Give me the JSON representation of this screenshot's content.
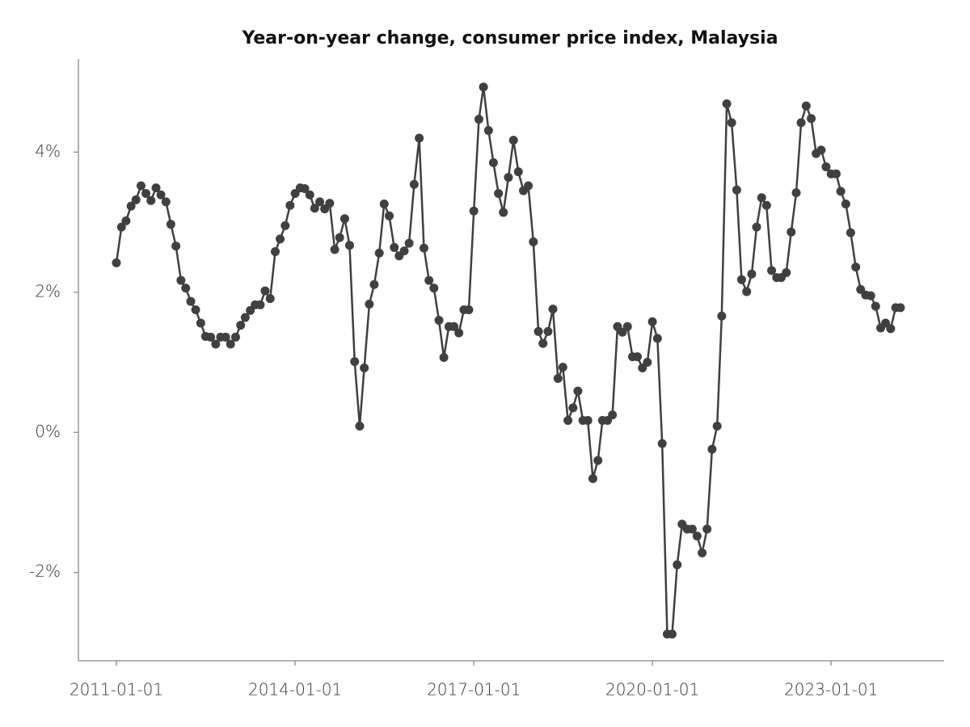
{
  "chart_data": {
    "type": "line",
    "title": "Year-on-year change, consumer price index, Malaysia",
    "x": [
      "2011-01-01",
      "2011-02-01",
      "2011-03-01",
      "2011-04-01",
      "2011-05-01",
      "2011-06-01",
      "2011-07-01",
      "2011-08-01",
      "2011-09-01",
      "2011-10-01",
      "2011-11-01",
      "2011-12-01",
      "2012-01-01",
      "2012-02-01",
      "2012-03-01",
      "2012-04-01",
      "2012-05-01",
      "2012-06-01",
      "2012-07-01",
      "2012-08-01",
      "2012-09-01",
      "2012-10-01",
      "2012-11-01",
      "2012-12-01",
      "2013-01-01",
      "2013-02-01",
      "2013-03-01",
      "2013-04-01",
      "2013-05-01",
      "2013-06-01",
      "2013-07-01",
      "2013-08-01",
      "2013-09-01",
      "2013-10-01",
      "2013-11-01",
      "2013-12-01",
      "2014-01-01",
      "2014-02-01",
      "2014-03-01",
      "2014-04-01",
      "2014-05-01",
      "2014-06-01",
      "2014-07-01",
      "2014-08-01",
      "2014-09-01",
      "2014-10-01",
      "2014-11-01",
      "2014-12-01",
      "2015-01-01",
      "2015-02-01",
      "2015-03-01",
      "2015-04-01",
      "2015-05-01",
      "2015-06-01",
      "2015-07-01",
      "2015-08-01",
      "2015-09-01",
      "2015-10-01",
      "2015-11-01",
      "2015-12-01",
      "2016-01-01",
      "2016-02-01",
      "2016-03-01",
      "2016-04-01",
      "2016-05-01",
      "2016-06-01",
      "2016-07-01",
      "2016-08-01",
      "2016-09-01",
      "2016-10-01",
      "2016-11-01",
      "2016-12-01",
      "2017-01-01",
      "2017-02-01",
      "2017-03-01",
      "2017-04-01",
      "2017-05-01",
      "2017-06-01",
      "2017-07-01",
      "2017-08-01",
      "2017-09-01",
      "2017-10-01",
      "2017-11-01",
      "2017-12-01",
      "2018-01-01",
      "2018-02-01",
      "2018-03-01",
      "2018-04-01",
      "2018-05-01",
      "2018-06-01",
      "2018-07-01",
      "2018-08-01",
      "2018-09-01",
      "2018-10-01",
      "2018-11-01",
      "2018-12-01",
      "2019-01-01",
      "2019-02-01",
      "2019-03-01",
      "2019-04-01",
      "2019-05-01",
      "2019-06-01",
      "2019-07-01",
      "2019-08-01",
      "2019-09-01",
      "2019-10-01",
      "2019-11-01",
      "2019-12-01",
      "2020-01-01",
      "2020-02-01",
      "2020-03-01",
      "2020-04-01",
      "2020-05-01",
      "2020-06-01",
      "2020-07-01",
      "2020-08-01",
      "2020-09-01",
      "2020-10-01",
      "2020-11-01",
      "2020-12-01",
      "2021-01-01",
      "2021-02-01",
      "2021-03-01",
      "2021-04-01",
      "2021-05-01",
      "2021-06-01",
      "2021-07-01",
      "2021-08-01",
      "2021-09-01",
      "2021-10-01",
      "2021-11-01",
      "2021-12-01",
      "2022-01-01",
      "2022-02-01",
      "2022-03-01",
      "2022-04-01",
      "2022-05-01",
      "2022-06-01",
      "2022-07-01",
      "2022-08-01",
      "2022-09-01",
      "2022-10-01",
      "2022-11-01",
      "2022-12-01",
      "2023-01-01",
      "2023-02-01",
      "2023-03-01",
      "2023-04-01",
      "2023-05-01",
      "2023-06-01",
      "2023-07-01",
      "2023-08-01",
      "2023-09-01",
      "2023-10-01",
      "2023-11-01",
      "2023-12-01",
      "2024-01-01",
      "2024-02-01",
      "2024-03-01"
    ],
    "values": [
      2.42,
      2.93,
      3.02,
      3.23,
      3.32,
      3.52,
      3.41,
      3.31,
      3.49,
      3.39,
      3.29,
      2.97,
      2.66,
      2.17,
      2.06,
      1.87,
      1.75,
      1.56,
      1.37,
      1.36,
      1.26,
      1.36,
      1.36,
      1.26,
      1.36,
      1.53,
      1.64,
      1.74,
      1.82,
      1.82,
      2.02,
      1.91,
      2.58,
      2.76,
      2.95,
      3.24,
      3.41,
      3.49,
      3.48,
      3.39,
      3.2,
      3.29,
      3.19,
      3.27,
      2.61,
      2.78,
      3.05,
      2.67,
      1.01,
      0.09,
      0.92,
      1.83,
      2.11,
      2.56,
      3.26,
      3.09,
      2.64,
      2.52,
      2.59,
      2.7,
      3.54,
      4.2,
      2.63,
      2.17,
      2.06,
      1.6,
      1.07,
      1.51,
      1.51,
      1.42,
      1.75,
      1.75,
      3.16,
      4.47,
      4.93,
      4.31,
      3.85,
      3.41,
      3.14,
      3.64,
      4.17,
      3.72,
      3.45,
      3.52,
      2.72,
      1.44,
      1.27,
      1.44,
      1.76,
      0.77,
      0.93,
      0.17,
      0.35,
      0.59,
      0.17,
      0.17,
      -0.66,
      -0.4,
      0.17,
      0.17,
      0.25,
      1.51,
      1.43,
      1.51,
      1.08,
      1.08,
      0.92,
      1.0,
      1.58,
      1.34,
      -0.16,
      -2.88,
      -2.88,
      -1.89,
      -1.31,
      -1.38,
      -1.38,
      -1.48,
      -1.72,
      -1.38,
      -0.24,
      0.09,
      1.66,
      4.69,
      4.42,
      3.46,
      2.18,
      2.01,
      2.26,
      2.93,
      3.35,
      3.24,
      2.31,
      2.21,
      2.21,
      2.28,
      2.86,
      3.42,
      4.42,
      4.66,
      4.48,
      3.98,
      4.03,
      3.79,
      3.69,
      3.69,
      3.44,
      3.26,
      2.85,
      2.36,
      2.04,
      1.96,
      1.95,
      1.8,
      1.49,
      1.56,
      1.48,
      1.78,
      1.78
    ],
    "color": "#404040",
    "xlim": [
      "2010-05-13",
      "2024-11-24"
    ],
    "xticks": [
      "2011-01-01",
      "2014-01-01",
      "2017-01-01",
      "2020-01-01",
      "2023-01-01"
    ],
    "ylim": [
      -3.26,
      5.33
    ],
    "yticks": [
      {
        "value": -2,
        "label": "-2%"
      },
      {
        "value": 0,
        "label": "0%"
      },
      {
        "value": 2,
        "label": "2%"
      },
      {
        "value": 4,
        "label": "4%"
      }
    ]
  }
}
